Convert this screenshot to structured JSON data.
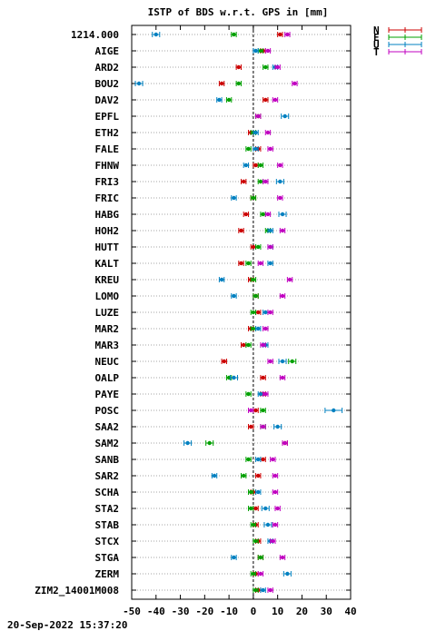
{
  "footer": "20-Sep-2022 15:37:20",
  "chart_data": {
    "type": "scatter",
    "title": "ISTP of BDS w.r.t. GPS in [mm]",
    "xlim": [
      -50,
      40
    ],
    "xticks": [
      -50,
      -40,
      -30,
      -20,
      -10,
      0,
      10,
      20,
      30,
      40
    ],
    "grid": "horizontal dotted",
    "zero_line": "vertical dashed at 0",
    "legend_position": "top-right",
    "categories": [
      "1214.000",
      "AIGE",
      "ARD2",
      "BOU2",
      "DAV2",
      "EPFL",
      "ETH2",
      "FALE",
      "FHNW",
      "FRI3",
      "FRIC",
      "HABG",
      "HOH2",
      "HUTT",
      "KALT",
      "KREU",
      "LOMO",
      "LUZE",
      "MAR2",
      "MAR3",
      "NEUC",
      "OALP",
      "PAYE",
      "POSC",
      "SAA2",
      "SAM2",
      "SANB",
      "SAR2",
      "SCHA",
      "STA2",
      "STAB",
      "STCX",
      "STGA",
      "ZERM",
      "ZIM2_14001M008"
    ],
    "series": [
      {
        "name": "N",
        "color": "#cc0000",
        "values": [
          11,
          4,
          -6,
          -13,
          5,
          2,
          -1,
          2,
          1,
          -4,
          0,
          -3,
          -5,
          0,
          -5,
          -1,
          1,
          2,
          -1,
          -4,
          -12,
          4,
          4,
          1,
          -1,
          13,
          4,
          2,
          0,
          1,
          1,
          2,
          3,
          1,
          2
        ],
        "errors": [
          1,
          1,
          1,
          1,
          1,
          1,
          1,
          1,
          1,
          1,
          1,
          1,
          1,
          1,
          1,
          1,
          1,
          1,
          1,
          1,
          1,
          1,
          1,
          1,
          1,
          1,
          1,
          1,
          1,
          1,
          1,
          1,
          1,
          1,
          1
        ]
      },
      {
        "name": "E",
        "color": "#00a000",
        "values": [
          -8,
          3,
          5,
          -6,
          -10,
          2,
          0,
          -2,
          3,
          3,
          0,
          4,
          6,
          2,
          -2,
          0,
          1,
          0,
          0,
          -2,
          16,
          -10,
          -2,
          4,
          4,
          -18,
          -2,
          -4,
          -1,
          -1,
          0,
          1,
          3,
          0,
          1
        ],
        "errors": [
          1,
          1,
          1,
          1,
          1,
          1,
          1,
          1,
          1,
          1,
          1,
          1,
          1,
          1,
          1,
          1,
          1,
          1,
          1,
          1,
          1.5,
          1,
          1,
          1,
          1,
          1.5,
          1,
          1,
          1,
          1,
          1,
          1,
          1,
          1,
          1
        ]
      },
      {
        "name": "U",
        "color": "#0080c0",
        "values": [
          -40,
          1,
          9,
          -47,
          -14,
          13,
          1,
          1,
          -3,
          11,
          -8,
          12,
          7,
          7,
          7,
          -13,
          -8,
          5,
          2,
          5,
          12,
          -8,
          3,
          33,
          10,
          -27,
          2,
          -16,
          2,
          5,
          6,
          7,
          -8,
          14,
          4
        ],
        "errors": [
          1.5,
          1,
          1,
          1.5,
          1,
          1.5,
          1,
          1,
          1,
          1.5,
          1,
          1.5,
          1,
          1,
          1,
          1,
          1,
          1,
          1,
          1,
          1.5,
          1.5,
          1,
          3.5,
          1.5,
          1.5,
          1,
          1,
          1,
          1.5,
          1.5,
          1,
          1,
          1.5,
          1
        ]
      },
      {
        "name": "T",
        "color": "#c000c0",
        "values": [
          14,
          6,
          10,
          17,
          9,
          2,
          6,
          7,
          11,
          5,
          11,
          6,
          12,
          7,
          3,
          15,
          12,
          7,
          5,
          4,
          7,
          12,
          5,
          -1,
          4,
          13,
          8,
          9,
          9,
          10,
          9,
          8,
          12,
          3,
          7
        ],
        "errors": [
          1,
          1,
          1,
          1,
          1,
          1,
          1,
          1,
          1,
          1,
          1,
          1,
          1,
          1,
          1,
          1,
          1,
          1,
          1,
          1,
          1,
          1,
          1,
          1,
          1,
          1,
          1,
          1,
          1,
          1,
          1,
          1,
          1,
          1,
          1
        ]
      }
    ]
  }
}
